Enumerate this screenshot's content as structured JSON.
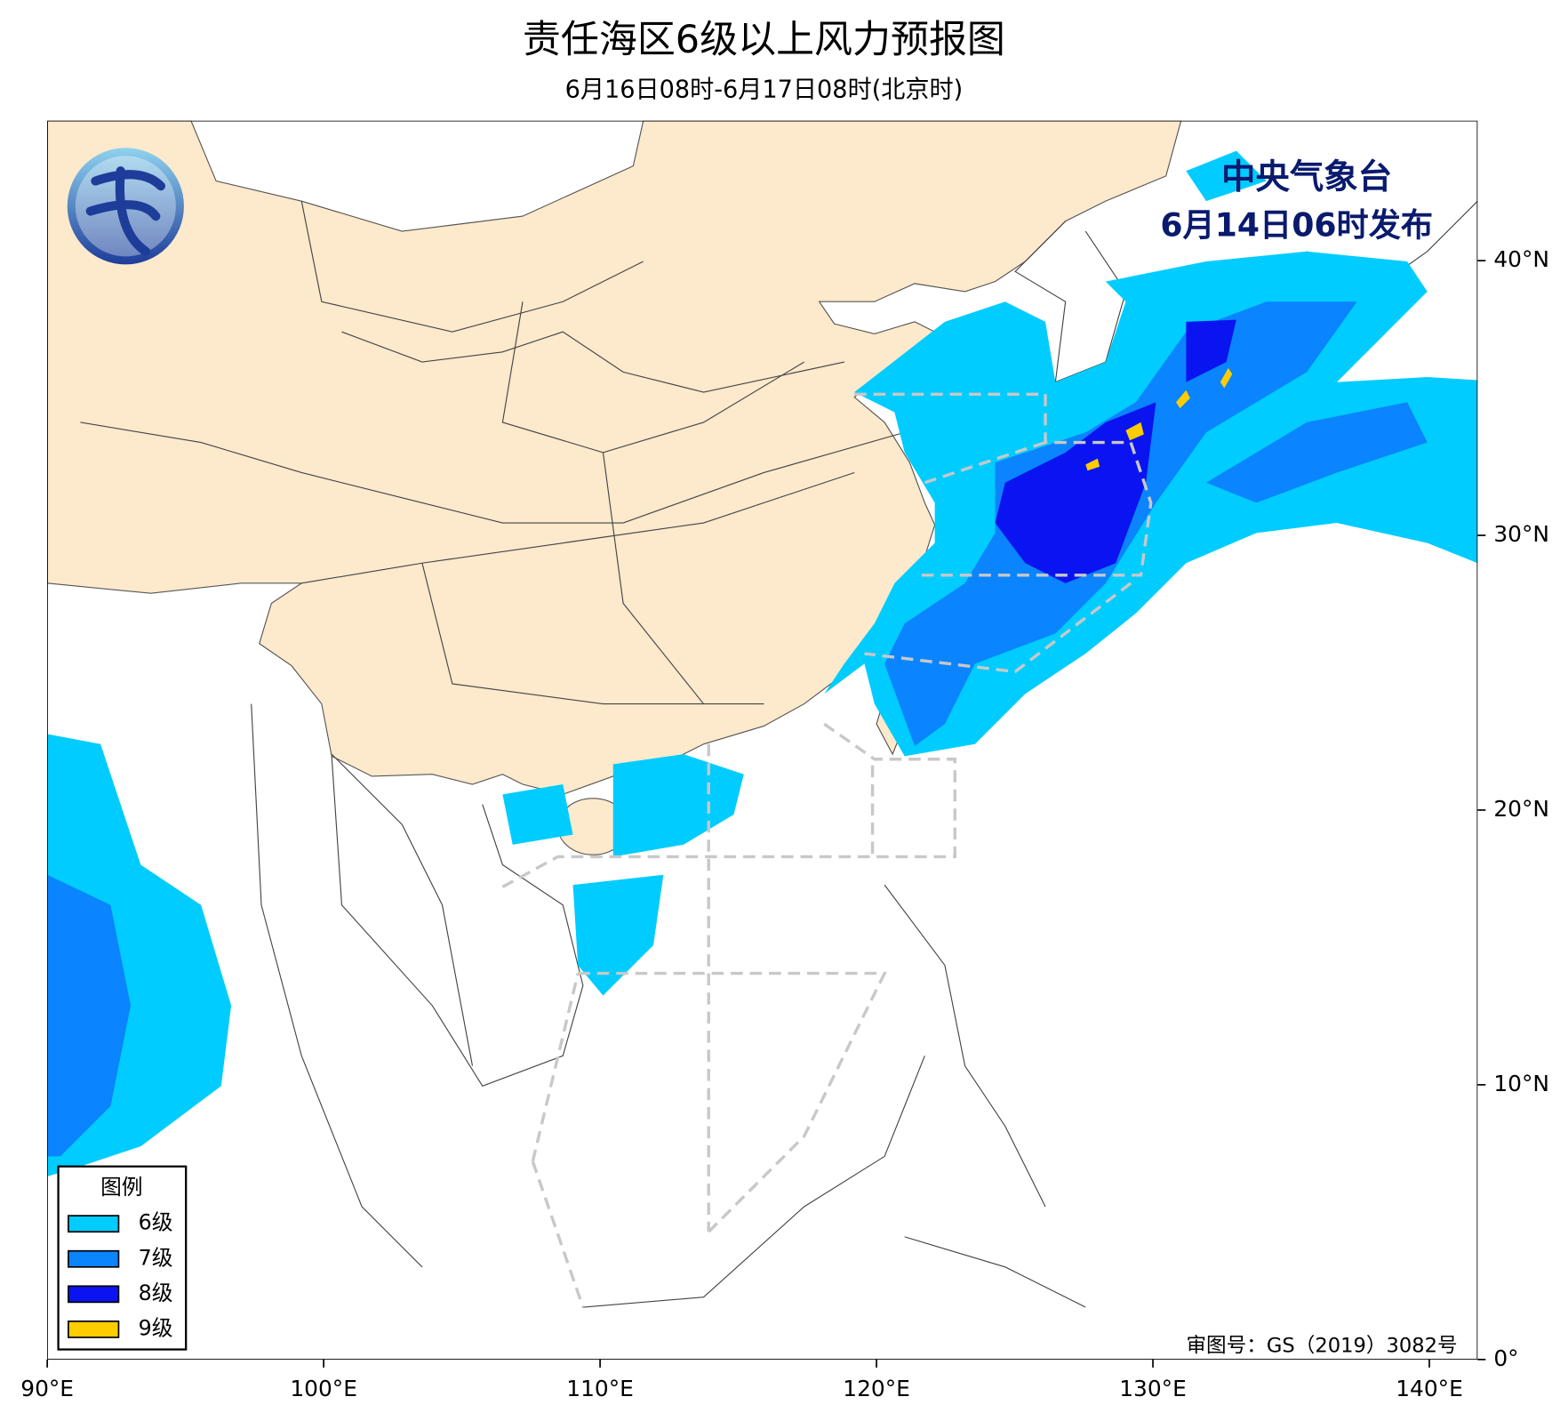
{
  "header": {
    "title": "责任海区6级以上风力预报图",
    "subtitle": "6月16日08时-6月17日08时(北京时)"
  },
  "issuer": {
    "name": "中央气象台",
    "issued": "6月14日06时发布"
  },
  "legend": {
    "title": "图例",
    "items": [
      {
        "label": "6级",
        "color": "#00ccff"
      },
      {
        "label": "7级",
        "color": "#0a84ff"
      },
      {
        "label": "8级",
        "color": "#0a14f0"
      },
      {
        "label": "9级",
        "color": "#ffcc00"
      }
    ]
  },
  "map": {
    "xticks": [
      {
        "value": 90,
        "label": "90°E"
      },
      {
        "value": 100,
        "label": "100°E"
      },
      {
        "value": 110,
        "label": "110°E"
      },
      {
        "value": 120,
        "label": "120°E"
      },
      {
        "value": 130,
        "label": "130°E"
      },
      {
        "value": 140,
        "label": "140°E"
      }
    ],
    "yticks": [
      {
        "value": 0,
        "label": "0°"
      },
      {
        "value": 10,
        "label": "10°N"
      },
      {
        "value": 20,
        "label": "20°N"
      },
      {
        "value": 30,
        "label": "30°N"
      },
      {
        "value": 40,
        "label": "40°N"
      }
    ]
  },
  "approval": "审图号：GS（2019）3082号"
}
